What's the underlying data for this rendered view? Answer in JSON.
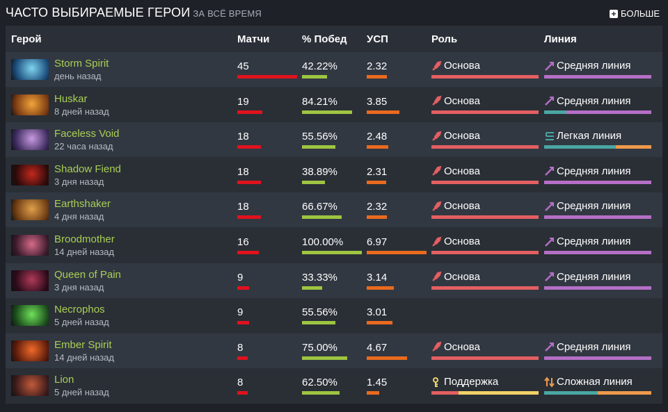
{
  "header": {
    "title": "ЧАСТО ВЫБИРАЕМЫЕ ГЕРОИ",
    "subtitle": "ЗА ВСЁ ВРЕМЯ",
    "more_label": "БОЛЬШЕ"
  },
  "columns": {
    "hero": "Герой",
    "matches": "Матчи",
    "winrate": "% Побед",
    "kda": "УСП",
    "role": "Роль",
    "lane": "Линия"
  },
  "colors": {
    "hero_name": "#a9cf54",
    "matches_bar": "#e0121d",
    "winrate_bar": "#9ec541",
    "kda_bar": "#ea6a1e",
    "core": "#e45f62",
    "support": "#f0d267",
    "mid": "#b56fc7",
    "safe": "#4aa7a3",
    "off": "#ee9a4c"
  },
  "rows": [
    {
      "hero": "Storm Spirit",
      "time": "день назад",
      "matches": "45",
      "winrate": "42.22%",
      "kda": "2.32",
      "role": "Основа",
      "role_icon": "sword-icon",
      "role_split": [
        1.0,
        0.0
      ],
      "lane": "Средняя линия",
      "lane_icon": "mid-lane-icon",
      "lane_split": [
        0.0,
        1.0,
        0.0
      ],
      "matches_ratio": 1.0,
      "winrate_ratio": 0.4222,
      "kda_ratio": 0.333,
      "portrait": [
        "#1a4a78",
        "#7fd4f0"
      ]
    },
    {
      "hero": "Huskar",
      "time": "8 дней назад",
      "matches": "19",
      "winrate": "84.21%",
      "kda": "3.85",
      "role": "Основа",
      "role_icon": "sword-icon",
      "role_split": [
        1.0,
        0.0
      ],
      "lane": "Средняя линия",
      "lane_icon": "mid-lane-icon",
      "lane_split": [
        0.21,
        0.79,
        0.0
      ],
      "matches_ratio": 0.422,
      "winrate_ratio": 0.8421,
      "kda_ratio": 0.552,
      "portrait": [
        "#7a3a12",
        "#f2a43a"
      ]
    },
    {
      "hero": "Faceless Void",
      "time": "22 часа назад",
      "matches": "18",
      "winrate": "55.56%",
      "kda": "2.48",
      "role": "Основа",
      "role_icon": "sword-icon",
      "role_split": [
        1.0,
        0.0
      ],
      "lane": "Легкая линия",
      "lane_icon": "safe-lane-icon",
      "lane_split": [
        0.67,
        0.0,
        0.33
      ],
      "matches_ratio": 0.4,
      "winrate_ratio": 0.5556,
      "kda_ratio": 0.356,
      "portrait": [
        "#3b2a5c",
        "#c79ae0"
      ]
    },
    {
      "hero": "Shadow Fiend",
      "time": "3 дня назад",
      "matches": "18",
      "winrate": "38.89%",
      "kda": "2.31",
      "role": "Основа",
      "role_icon": "sword-icon",
      "role_split": [
        1.0,
        0.0
      ],
      "lane": "Средняя линия",
      "lane_icon": "mid-lane-icon",
      "lane_split": [
        0.0,
        1.0,
        0.0
      ],
      "matches_ratio": 0.4,
      "winrate_ratio": 0.3889,
      "kda_ratio": 0.331,
      "portrait": [
        "#2a0a0a",
        "#c2281e"
      ]
    },
    {
      "hero": "Earthshaker",
      "time": "4 дня назад",
      "matches": "18",
      "winrate": "66.67%",
      "kda": "2.32",
      "role": "Основа",
      "role_icon": "sword-icon",
      "role_split": [
        1.0,
        0.0
      ],
      "lane": "Средняя линия",
      "lane_icon": "mid-lane-icon",
      "lane_split": [
        0.0,
        1.0,
        0.0
      ],
      "matches_ratio": 0.4,
      "winrate_ratio": 0.6667,
      "kda_ratio": 0.333,
      "portrait": [
        "#6b3a12",
        "#e0a04a"
      ]
    },
    {
      "hero": "Broodmother",
      "time": "14 дней назад",
      "matches": "16",
      "winrate": "100.00%",
      "kda": "6.97",
      "role": "Основа",
      "role_icon": "sword-icon",
      "role_split": [
        1.0,
        0.0
      ],
      "lane": "Средняя линия",
      "lane_icon": "mid-lane-icon",
      "lane_split": [
        0.0,
        1.0,
        0.0
      ],
      "matches_ratio": 0.356,
      "winrate_ratio": 1.0,
      "kda_ratio": 1.0,
      "portrait": [
        "#3a1a2a",
        "#d66a8a"
      ]
    },
    {
      "hero": "Queen of Pain",
      "time": "3 дня назад",
      "matches": "9",
      "winrate": "33.33%",
      "kda": "3.14",
      "role": "Основа",
      "role_icon": "sword-icon",
      "role_split": [
        1.0,
        0.0
      ],
      "lane": "Средняя линия",
      "lane_icon": "mid-lane-icon",
      "lane_split": [
        0.0,
        1.0,
        0.0
      ],
      "matches_ratio": 0.2,
      "winrate_ratio": 0.3333,
      "kda_ratio": 0.45,
      "portrait": [
        "#2a0a18",
        "#b03a5a"
      ]
    },
    {
      "hero": "Necrophos",
      "time": "5 дней назад",
      "matches": "9",
      "winrate": "55.56%",
      "kda": "3.01",
      "role": "",
      "role_icon": "",
      "role_split": [
        0.0,
        0.0
      ],
      "lane": "",
      "lane_icon": "",
      "lane_split": [
        0.0,
        0.0,
        0.0
      ],
      "matches_ratio": 0.2,
      "winrate_ratio": 0.5556,
      "kda_ratio": 0.432,
      "portrait": [
        "#1a4a1a",
        "#6fe05a"
      ]
    },
    {
      "hero": "Ember Spirit",
      "time": "14 дней назад",
      "matches": "8",
      "winrate": "75.00%",
      "kda": "4.67",
      "role": "Основа",
      "role_icon": "sword-icon",
      "role_split": [
        1.0,
        0.0
      ],
      "lane": "Средняя линия",
      "lane_icon": "mid-lane-icon",
      "lane_split": [
        0.0,
        1.0,
        0.0
      ],
      "matches_ratio": 0.178,
      "winrate_ratio": 0.75,
      "kda_ratio": 0.67,
      "portrait": [
        "#5a1a0a",
        "#f06a2a"
      ]
    },
    {
      "hero": "Lion",
      "time": "5 дней назад",
      "matches": "8",
      "winrate": "62.50%",
      "kda": "1.45",
      "role": "Поддержка",
      "role_icon": "support-icon",
      "role_split": [
        0.25,
        0.75
      ],
      "lane": "Сложная линия",
      "lane_icon": "off-lane-icon",
      "lane_split": [
        0.5,
        0.0,
        0.5
      ],
      "matches_ratio": 0.178,
      "winrate_ratio": 0.625,
      "kda_ratio": 0.208,
      "portrait": [
        "#3a1a1a",
        "#c25a3a"
      ]
    }
  ]
}
